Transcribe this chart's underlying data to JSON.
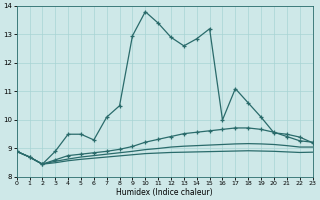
{
  "xlabel": "Humidex (Indice chaleur)",
  "xlim": [
    0,
    23
  ],
  "ylim": [
    8,
    14
  ],
  "yticks": [
    8,
    9,
    10,
    11,
    12,
    13,
    14
  ],
  "xticks": [
    0,
    1,
    2,
    3,
    4,
    5,
    6,
    7,
    8,
    9,
    10,
    11,
    12,
    13,
    14,
    15,
    16,
    17,
    18,
    19,
    20,
    21,
    22,
    23
  ],
  "bg_color": "#cee8e8",
  "line_color": "#2a6b6b",
  "line1_y": [
    8.9,
    8.7,
    8.45,
    8.9,
    9.5,
    9.5,
    9.3,
    10.1,
    10.5,
    12.95,
    13.8,
    13.4,
    12.9,
    12.6,
    12.85,
    13.2,
    10.0,
    11.1,
    10.6,
    10.1,
    9.55,
    9.5,
    9.4,
    9.2
  ],
  "line2_y": [
    8.9,
    8.7,
    8.45,
    8.6,
    8.75,
    8.8,
    8.85,
    8.9,
    8.97,
    9.07,
    9.22,
    9.32,
    9.42,
    9.52,
    9.57,
    9.62,
    9.67,
    9.72,
    9.72,
    9.67,
    9.57,
    9.42,
    9.27,
    9.22
  ],
  "line3_y": [
    8.9,
    8.7,
    8.45,
    8.55,
    8.63,
    8.7,
    8.75,
    8.8,
    8.85,
    8.9,
    8.96,
    9.0,
    9.05,
    9.08,
    9.1,
    9.12,
    9.14,
    9.16,
    9.17,
    9.16,
    9.14,
    9.1,
    9.05,
    9.05
  ],
  "line4_y": [
    8.9,
    8.7,
    8.45,
    8.5,
    8.57,
    8.62,
    8.66,
    8.7,
    8.74,
    8.78,
    8.82,
    8.84,
    8.86,
    8.87,
    8.88,
    8.89,
    8.9,
    8.91,
    8.92,
    8.91,
    8.9,
    8.88,
    8.86,
    8.87
  ]
}
